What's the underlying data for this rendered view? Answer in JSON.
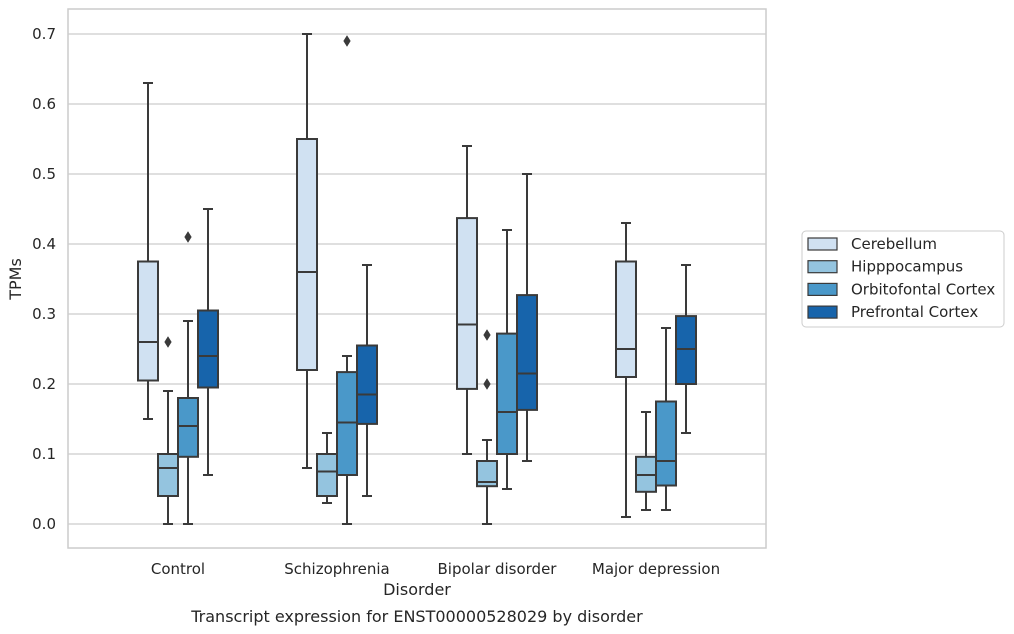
{
  "chart_data": {
    "type": "box",
    "caption": "Transcript expression for ENST00000528029 by disorder",
    "xlabel": "Disorder",
    "ylabel": "TPMs",
    "ylim": [
      -0.035,
      0.735
    ],
    "yticks": [
      "0.0",
      "0.1",
      "0.2",
      "0.3",
      "0.4",
      "0.5",
      "0.6",
      "0.7"
    ],
    "grid": "horizontal",
    "legend_position": "right",
    "categories": [
      "Control",
      "Schizophrenia",
      "Bipolar disorder",
      "Major depression"
    ],
    "series": [
      {
        "name": "Cerebellum",
        "color": "#d0e1f2",
        "boxes": [
          {
            "whislo": 0.15,
            "q1": 0.205,
            "med": 0.26,
            "q3": 0.375,
            "whishi": 0.63,
            "fliers": []
          },
          {
            "whislo": 0.08,
            "q1": 0.22,
            "med": 0.36,
            "q3": 0.55,
            "whishi": 0.7,
            "fliers": []
          },
          {
            "whislo": 0.1,
            "q1": 0.193,
            "med": 0.285,
            "q3": 0.437,
            "whishi": 0.54,
            "fliers": []
          },
          {
            "whislo": 0.01,
            "q1": 0.21,
            "med": 0.25,
            "q3": 0.375,
            "whishi": 0.43,
            "fliers": []
          }
        ]
      },
      {
        "name": "Hipppocampus",
        "color": "#94c4df",
        "boxes": [
          {
            "whislo": 0.0,
            "q1": 0.04,
            "med": 0.08,
            "q3": 0.1,
            "whishi": 0.19,
            "fliers": [
              0.26
            ]
          },
          {
            "whislo": 0.03,
            "q1": 0.04,
            "med": 0.075,
            "q3": 0.1,
            "whishi": 0.13,
            "fliers": []
          },
          {
            "whislo": 0.0,
            "q1": 0.054,
            "med": 0.06,
            "q3": 0.09,
            "whishi": 0.12,
            "fliers": [
              0.2,
              0.27
            ]
          },
          {
            "whislo": 0.02,
            "q1": 0.046,
            "med": 0.07,
            "q3": 0.096,
            "whishi": 0.16,
            "fliers": []
          }
        ]
      },
      {
        "name": "Orbitofontal Cortex",
        "color": "#4a98c9",
        "boxes": [
          {
            "whislo": 0.0,
            "q1": 0.096,
            "med": 0.14,
            "q3": 0.18,
            "whishi": 0.29,
            "fliers": [
              0.41
            ]
          },
          {
            "whislo": 0.0,
            "q1": 0.07,
            "med": 0.145,
            "q3": 0.217,
            "whishi": 0.24,
            "fliers": [
              0.69
            ]
          },
          {
            "whislo": 0.05,
            "q1": 0.1,
            "med": 0.16,
            "q3": 0.272,
            "whishi": 0.42,
            "fliers": []
          },
          {
            "whislo": 0.02,
            "q1": 0.055,
            "med": 0.09,
            "q3": 0.175,
            "whishi": 0.28,
            "fliers": []
          }
        ]
      },
      {
        "name": "Prefrontal Cortex",
        "color": "#1764ab",
        "boxes": [
          {
            "whislo": 0.07,
            "q1": 0.195,
            "med": 0.24,
            "q3": 0.305,
            "whishi": 0.45,
            "fliers": []
          },
          {
            "whislo": 0.04,
            "q1": 0.143,
            "med": 0.185,
            "q3": 0.255,
            "whishi": 0.37,
            "fliers": []
          },
          {
            "whislo": 0.09,
            "q1": 0.163,
            "med": 0.215,
            "q3": 0.327,
            "whishi": 0.5,
            "fliers": []
          },
          {
            "whislo": 0.13,
            "q1": 0.2,
            "med": 0.25,
            "q3": 0.297,
            "whishi": 0.37,
            "fliers": []
          }
        ]
      }
    ]
  }
}
